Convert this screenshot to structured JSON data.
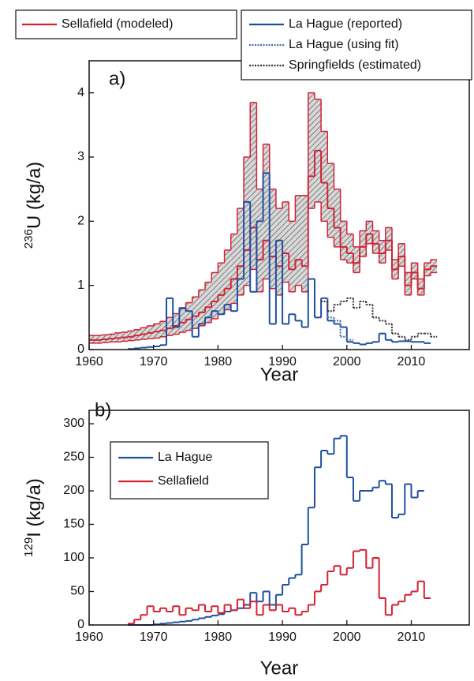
{
  "chart_data": [
    {
      "type": "step",
      "panel_label": "a)",
      "x_label": "Year",
      "y_label_sup": "236",
      "y_label": "U (kg/a)",
      "legend": "outside-top",
      "x": [
        1960,
        1961,
        1962,
        1963,
        1964,
        1965,
        1966,
        1967,
        1968,
        1969,
        1970,
        1971,
        1972,
        1973,
        1974,
        1975,
        1976,
        1977,
        1978,
        1979,
        1980,
        1981,
        1982,
        1983,
        1984,
        1985,
        1986,
        1987,
        1988,
        1989,
        1990,
        1991,
        1992,
        1993,
        1994,
        1995,
        1996,
        1997,
        1998,
        1999,
        2000,
        2001,
        2002,
        2003,
        2004,
        2005,
        2006,
        2007,
        2008,
        2009,
        2010,
        2011,
        2012,
        2013
      ],
      "xlim": [
        1960,
        2019
      ],
      "ylim": [
        0,
        4.5
      ],
      "xticks": [
        1960,
        1970,
        1980,
        1990,
        2000,
        2010
      ],
      "yticks": [
        0,
        1,
        2,
        3,
        4
      ],
      "series": [
        {
          "name": "Sellafield (modeled)",
          "color": "#d62032",
          "style": "solid",
          "values": [
            0.15,
            0.15,
            0.16,
            0.17,
            0.18,
            0.19,
            0.2,
            0.22,
            0.24,
            0.26,
            0.28,
            0.3,
            0.33,
            0.37,
            0.42,
            0.47,
            0.52,
            0.58,
            0.66,
            0.75,
            0.85,
            0.95,
            1.1,
            1.3,
            1.55,
            1.9,
            1.4,
            1.7,
            1.45,
            1.3,
            1.5,
            1.25,
            1.4,
            1.3,
            2.7,
            3.1,
            2.6,
            2.2,
            1.9,
            1.6,
            1.5,
            1.35,
            1.6,
            1.8,
            1.65,
            1.5,
            1.7,
            1.25,
            1.45,
            1.0,
            1.2,
            0.95,
            1.25,
            1.3
          ],
          "low": [
            0.1,
            0.1,
            0.11,
            0.12,
            0.12,
            0.13,
            0.14,
            0.15,
            0.16,
            0.17,
            0.18,
            0.2,
            0.22,
            0.24,
            0.27,
            0.3,
            0.33,
            0.37,
            0.42,
            0.48,
            0.55,
            0.62,
            0.72,
            0.85,
            1.0,
            1.25,
            0.9,
            1.1,
            0.95,
            0.85,
            1.05,
            0.9,
            1.0,
            0.9,
            2.2,
            2.3,
            2.0,
            1.75,
            1.6,
            1.4,
            1.35,
            1.2,
            1.45,
            1.65,
            1.5,
            1.35,
            1.55,
            1.1,
            1.3,
            0.85,
            1.1,
            0.85,
            1.15,
            1.2
          ],
          "high": [
            0.22,
            0.22,
            0.23,
            0.24,
            0.26,
            0.27,
            0.29,
            0.31,
            0.34,
            0.37,
            0.4,
            0.44,
            0.5,
            0.56,
            0.64,
            0.73,
            0.82,
            0.93,
            1.05,
            1.2,
            1.35,
            1.55,
            1.8,
            2.2,
            3.0,
            3.85,
            2.5,
            3.2,
            2.5,
            2.2,
            2.3,
            2.0,
            2.4,
            2.4,
            4.0,
            3.9,
            3.4,
            2.9,
            2.5,
            2.0,
            1.8,
            1.6,
            1.85,
            2.0,
            1.85,
            1.7,
            1.9,
            1.4,
            1.65,
            1.2,
            1.35,
            1.1,
            1.35,
            1.4
          ]
        },
        {
          "name": "La Hague (reported)",
          "color": "#1f4fa0",
          "style": "solid",
          "values": [
            null,
            null,
            null,
            null,
            null,
            null,
            0.01,
            0.02,
            0.03,
            0.04,
            0.05,
            0.07,
            0.8,
            0.35,
            0.65,
            0.6,
            0.2,
            0.4,
            0.5,
            0.6,
            0.55,
            0.7,
            0.6,
            1.1,
            2.3,
            0.9,
            2.0,
            2.75,
            0.4,
            1.7,
            0.4,
            0.55,
            0.45,
            0.35,
            1.1,
            0.5,
            0.8,
            0.45,
            0.4,
            0.35,
            0.12,
            0.1,
            0.08,
            0.1,
            0.12,
            0.25,
            0.15,
            0.12,
            0.13,
            0.13,
            0.12,
            0.12,
            0.1,
            null
          ]
        },
        {
          "name": "La Hague (using fit)",
          "color": "#4a6aa8",
          "style": "dotted",
          "values": [
            null,
            null,
            null,
            null,
            null,
            null,
            null,
            null,
            null,
            null,
            null,
            null,
            null,
            null,
            null,
            null,
            null,
            null,
            null,
            null,
            null,
            null,
            null,
            null,
            null,
            null,
            null,
            null,
            null,
            null,
            null,
            null,
            null,
            null,
            null,
            null,
            0.8,
            0.5,
            0.45,
            0.2,
            0.15,
            null,
            null,
            null,
            null,
            null,
            null,
            null,
            null,
            null,
            null,
            null,
            null,
            null
          ]
        },
        {
          "name": "Springfields (estimated)",
          "color": "#333333",
          "style": "dotted",
          "values": [
            null,
            null,
            null,
            null,
            null,
            null,
            null,
            null,
            null,
            null,
            null,
            null,
            null,
            null,
            null,
            null,
            null,
            null,
            null,
            null,
            null,
            null,
            null,
            null,
            null,
            null,
            null,
            null,
            null,
            null,
            null,
            null,
            null,
            null,
            null,
            null,
            0.75,
            0.6,
            0.7,
            0.75,
            0.8,
            0.65,
            0.75,
            0.7,
            0.5,
            0.45,
            0.4,
            0.25,
            0.2,
            0.15,
            0.2,
            0.25,
            0.25,
            0.2
          ]
        }
      ]
    },
    {
      "type": "step",
      "panel_label": "b)",
      "x_label": "Year",
      "y_label_sup": "129",
      "y_label": "I (kg/a)",
      "legend": "upper-left",
      "x": [
        1966,
        1967,
        1968,
        1969,
        1970,
        1971,
        1972,
        1973,
        1974,
        1975,
        1976,
        1977,
        1978,
        1979,
        1980,
        1981,
        1982,
        1983,
        1984,
        1985,
        1986,
        1987,
        1988,
        1989,
        1990,
        1991,
        1992,
        1993,
        1994,
        1995,
        1996,
        1997,
        1998,
        1999,
        2000,
        2001,
        2002,
        2003,
        2004,
        2005,
        2006,
        2007,
        2008,
        2009,
        2010,
        2011,
        2012
      ],
      "xlim": [
        1960,
        2019
      ],
      "ylim": [
        0,
        320
      ],
      "xticks": [
        1960,
        1970,
        1980,
        1990,
        2000,
        2010
      ],
      "yticks": [
        0,
        50,
        100,
        150,
        200,
        250,
        300
      ],
      "series": [
        {
          "name": "La Hague",
          "color": "#1f4fa0",
          "style": "solid",
          "values": [
            0,
            0,
            0,
            0,
            1,
            2,
            3,
            4,
            5,
            6,
            8,
            10,
            12,
            14,
            16,
            20,
            22,
            25,
            30,
            48,
            35,
            50,
            30,
            45,
            60,
            70,
            75,
            120,
            175,
            235,
            260,
            255,
            278,
            282,
            220,
            185,
            200,
            200,
            205,
            215,
            210,
            160,
            165,
            210,
            190,
            200,
            null
          ]
        },
        {
          "name": "Sellafield",
          "color": "#d62032",
          "style": "solid",
          "values": [
            2,
            8,
            15,
            28,
            20,
            25,
            20,
            28,
            15,
            25,
            22,
            30,
            20,
            28,
            18,
            30,
            22,
            38,
            25,
            35,
            15,
            30,
            22,
            30,
            20,
            25,
            15,
            20,
            30,
            50,
            60,
            80,
            88,
            75,
            85,
            110,
            112,
            85,
            100,
            40,
            15,
            30,
            35,
            45,
            50,
            65,
            40
          ]
        }
      ]
    }
  ]
}
